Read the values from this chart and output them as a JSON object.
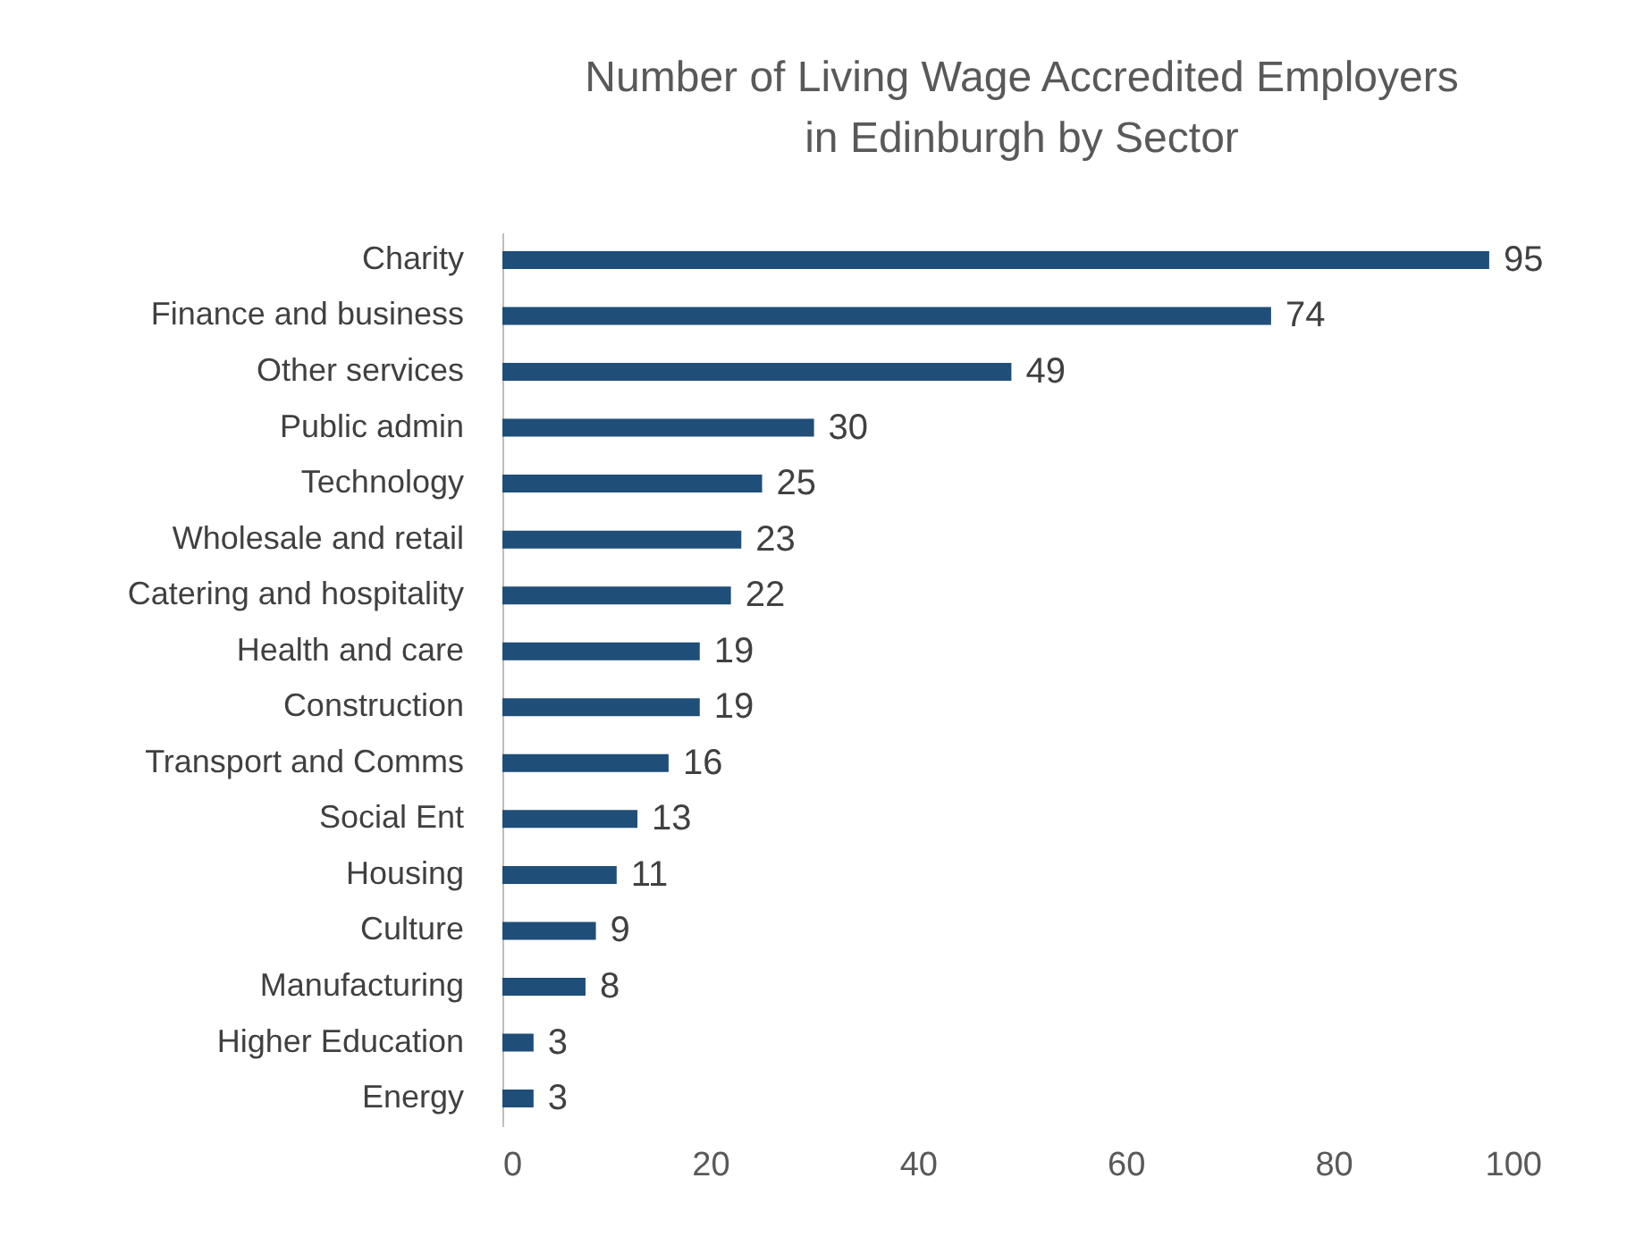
{
  "chart_data": {
    "type": "bar",
    "orientation": "horizontal",
    "title": "Number of Living Wage Accredited Employers\nin Edinburgh by Sector",
    "categories": [
      "Charity",
      "Finance and business",
      "Other services",
      "Public admin",
      "Technology",
      "Wholesale and retail",
      "Catering and hospitality",
      "Health and care",
      "Construction",
      "Transport and Comms",
      "Social Ent",
      "Housing",
      "Culture",
      "Manufacturing",
      "Higher Education",
      "Energy"
    ],
    "values": [
      95,
      74,
      49,
      30,
      25,
      23,
      22,
      19,
      19,
      16,
      13,
      11,
      9,
      8,
      3,
      3
    ],
    "color": "#1f4e79",
    "xlim": [
      0,
      100
    ],
    "xticks": [
      0,
      20,
      40,
      60,
      80,
      100
    ],
    "grid": false,
    "data_labels": true
  }
}
